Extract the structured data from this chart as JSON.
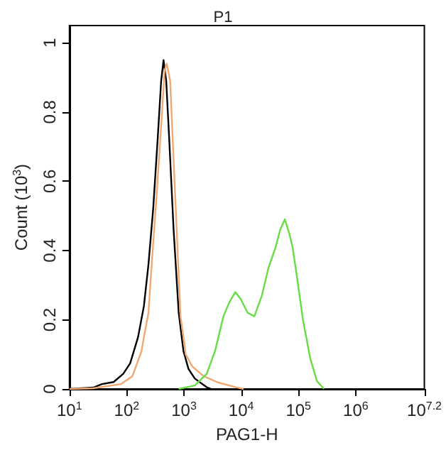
{
  "chart_data": {
    "type": "line",
    "title": "P1",
    "xlabel": "PAG1-H",
    "ylabel": "Count (10$^{3}$)",
    "log": "x",
    "grid": false,
    "marker": "none",
    "line_style": "solid",
    "xlim": [
      10,
      15848932
    ],
    "xticks": [
      {
        "value": 10,
        "label": "10$^{1}$"
      },
      {
        "value": 100,
        "label": "10$^{2}$"
      },
      {
        "value": 1000,
        "label": "10$^{3}$"
      },
      {
        "value": 10000,
        "label": "10$^{4}$"
      },
      {
        "value": 100000,
        "label": "10$^{5}$"
      },
      {
        "value": 1000000,
        "label": "10$^{6}$"
      },
      {
        "value": 15848932,
        "label": "10$^{7.2}$"
      }
    ],
    "ylim": [
      0,
      1.05
    ],
    "yticks": [
      0,
      0.2,
      0.4,
      0.6,
      0.8,
      1
    ],
    "series": [
      {
        "color": "#000000",
        "x": [
          10,
          26,
          37,
          59,
          87,
          115,
          158,
          200,
          240,
          290,
          350,
          400,
          440,
          490,
          550,
          660,
          810,
          980,
          1200,
          1550,
          2500,
          3000
        ],
        "values": [
          0,
          0.004,
          0.014,
          0.02,
          0.044,
          0.074,
          0.15,
          0.24,
          0.36,
          0.52,
          0.73,
          0.89,
          0.95,
          0.89,
          0.73,
          0.46,
          0.22,
          0.11,
          0.058,
          0.03,
          0.005,
          0
        ]
      },
      {
        "color": "#f0a870",
        "x": [
          10,
          26,
          79,
          126,
          182,
          200,
          240,
          263,
          330,
          400,
          460,
          500,
          575,
          660,
          780,
          870,
          1020,
          1070,
          1400,
          2200,
          3900,
          8100,
          11000
        ],
        "values": [
          0,
          0.002,
          0.014,
          0.037,
          0.11,
          0.15,
          0.22,
          0.32,
          0.55,
          0.76,
          0.92,
          0.94,
          0.89,
          0.66,
          0.39,
          0.21,
          0.13,
          0.1,
          0.065,
          0.037,
          0.019,
          0.005,
          0
        ]
      },
      {
        "color": "#66dd44",
        "x": [
          810,
          1550,
          2500,
          3500,
          4900,
          6200,
          7900,
          9800,
          13000,
          17000,
          23000,
          30000,
          40000,
          48000,
          58000,
          69000,
          79000,
          95000,
          120000,
          160000,
          210000,
          280000
        ],
        "values": [
          0,
          0.01,
          0.044,
          0.11,
          0.21,
          0.25,
          0.28,
          0.26,
          0.22,
          0.21,
          0.27,
          0.35,
          0.41,
          0.46,
          0.49,
          0.45,
          0.41,
          0.32,
          0.2,
          0.09,
          0.023,
          0
        ]
      }
    ]
  }
}
